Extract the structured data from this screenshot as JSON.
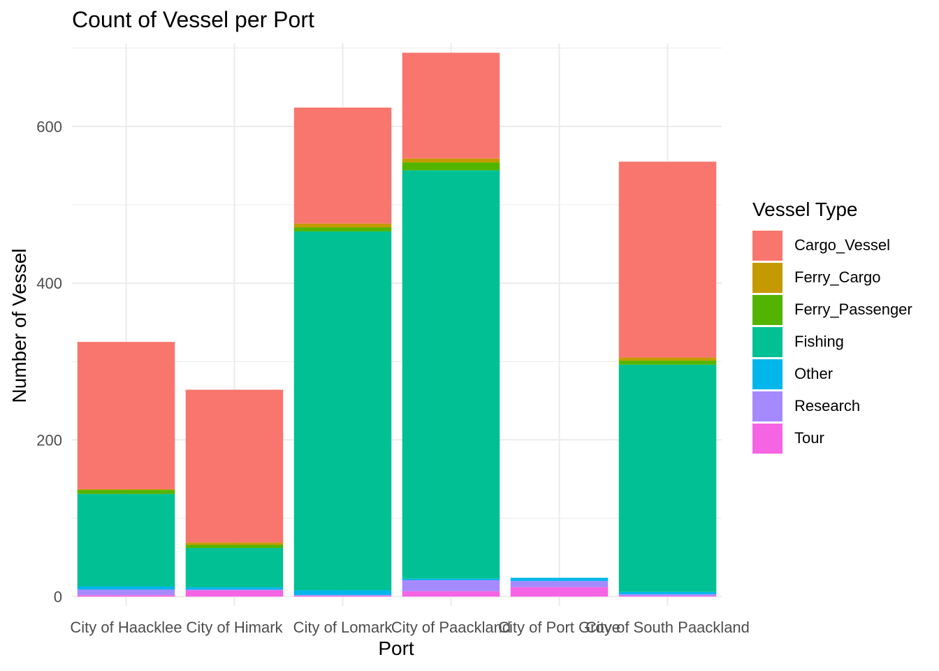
{
  "chart_data": {
    "type": "bar",
    "stacked": true,
    "title": "Count of Vessel per Port",
    "xlabel": "Port",
    "ylabel": "Number of Vessel",
    "ylim": [
      -12,
      706
    ],
    "yticks": [
      0,
      200,
      400,
      600
    ],
    "grid": true,
    "legend_position": "right",
    "legend_title": "Vessel Type",
    "categories": [
      "City of Haacklee",
      "City of Himark",
      "City of Lomark",
      "City of Paackland",
      "City of Port Grove",
      "City of South Paackland"
    ],
    "series": [
      {
        "name": "Tour",
        "color": "#F564E3",
        "values": [
          2,
          8,
          1,
          7,
          12,
          1
        ]
      },
      {
        "name": "Research",
        "color": "#A58AFF",
        "values": [
          7,
          1,
          1,
          14,
          8,
          2
        ]
      },
      {
        "name": "Other",
        "color": "#00B6EB",
        "values": [
          4,
          3,
          6,
          2,
          4,
          3
        ]
      },
      {
        "name": "Fishing",
        "color": "#00C094",
        "values": [
          118,
          50,
          458,
          521,
          0,
          290
        ]
      },
      {
        "name": "Ferry_Passenger",
        "color": "#53B400",
        "values": [
          5,
          4,
          5,
          10,
          0,
          5
        ]
      },
      {
        "name": "Ferry_Cargo",
        "color": "#C49A00",
        "values": [
          1,
          3,
          5,
          5,
          0,
          4
        ]
      },
      {
        "name": "Cargo_Vessel",
        "color": "#F8766D",
        "values": [
          188,
          195,
          148,
          135,
          0,
          250
        ]
      }
    ],
    "legend_order": [
      "Cargo_Vessel",
      "Ferry_Cargo",
      "Ferry_Passenger",
      "Fishing",
      "Other",
      "Research",
      "Tour"
    ]
  }
}
